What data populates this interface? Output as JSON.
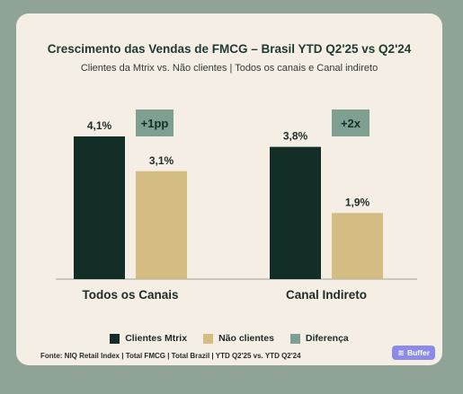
{
  "chart_data": {
    "type": "bar",
    "title": "Crescimento das Vendas de FMCG – Brasil YTD Q2'25 vs Q2'24",
    "subtitle": "Clientes da Mtrix vs. Não clientes | Todos os canais e Canal indireto",
    "categories": [
      "Todos os Canais",
      "Canal Indireto"
    ],
    "series": [
      {
        "name": "Clientes Mtrix",
        "values": [
          4.1,
          3.8
        ],
        "labels": [
          "4,1%",
          "3,8%"
        ],
        "color": "#132e27"
      },
      {
        "name": "Não clientes",
        "values": [
          3.1,
          1.9
        ],
        "labels": [
          "3,1%",
          "1,9%"
        ],
        "color": "#d4bd83"
      }
    ],
    "difference": {
      "name": "Diferença",
      "labels": [
        "+1pp",
        "+2x"
      ],
      "color": "#7fa091"
    },
    "ylim": [
      0,
      4.1
    ],
    "grid": false,
    "legend_position": "bottom",
    "source": "Fonte: NIQ Retail Index | Total FMCG | Total Brazil | YTD Q2'25 vs. YTD Q2'24"
  },
  "brand": {
    "label": "Buffer",
    "icon": "layers-icon"
  }
}
